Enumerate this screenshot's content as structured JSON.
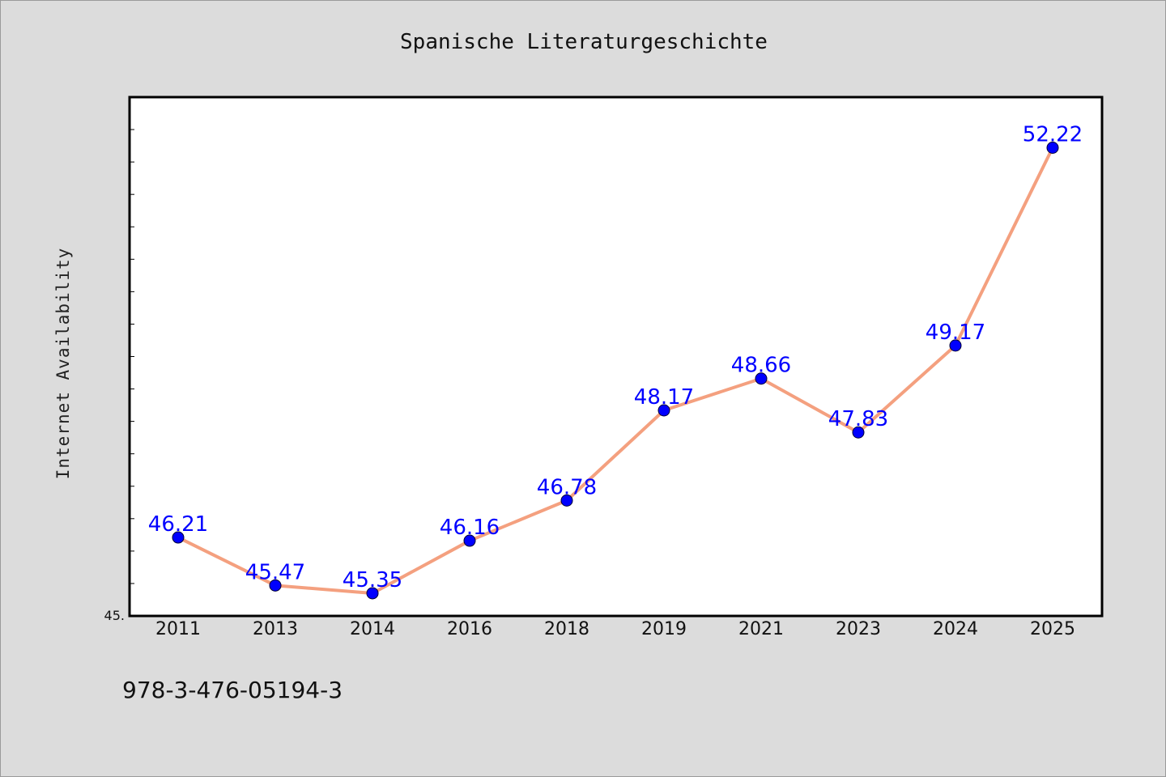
{
  "chart_data": {
    "type": "line",
    "title": "Spanische Literaturgeschichte",
    "xlabel": "",
    "ylabel": "Internet Availability",
    "categories": [
      "2011",
      "2013",
      "2014",
      "2016",
      "2018",
      "2019",
      "2021",
      "2023",
      "2024",
      "2025"
    ],
    "values": [
      46.21,
      45.47,
      45.35,
      46.16,
      46.78,
      48.17,
      48.66,
      47.83,
      49.17,
      52.22
    ],
    "data_labels": [
      "46.21",
      "45.47",
      "45.35",
      "46.16",
      "46.78",
      "48.17",
      "48.66",
      "47.83",
      "49.17",
      "52.22"
    ],
    "ylim": [
      45.0,
      53.0
    ],
    "y_tick_label_shown": "45.",
    "grid": false,
    "legend": "none",
    "colors": {
      "line": "#f4a07f",
      "marker": "#0000ff",
      "data_label": "#0000ff",
      "background": "#dcdcdc",
      "plot_background": "#ffffff"
    }
  },
  "footer": {
    "isbn": "978-3-476-05194-3"
  }
}
